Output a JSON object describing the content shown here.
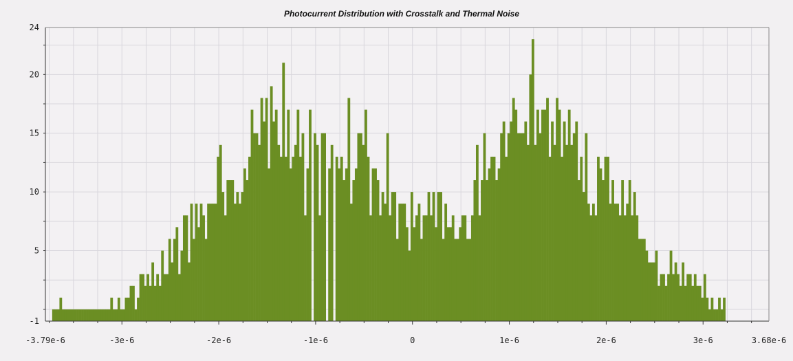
{
  "chart_data": {
    "type": "bar",
    "title": "Photocurrent Distribution with Crosstalk and Thermal Noise",
    "xlabel": "",
    "ylabel": "",
    "xlim": [
      -3.79e-06,
      3.68e-06
    ],
    "ylim": [
      -1,
      24
    ],
    "x_ticks": [
      -3.79e-06,
      -3e-06,
      -2e-06,
      -1e-06,
      0,
      1e-06,
      2e-06,
      3e-06,
      3.68e-06
    ],
    "x_tick_labels": [
      "-3.79e-6",
      "-3e-6",
      "-2e-6",
      "-1e-6",
      "0",
      "1e-6",
      "2e-6",
      "3e-6",
      "3.68e-6"
    ],
    "y_ticks": [
      -1,
      5,
      10,
      15,
      20,
      24
    ],
    "y_tick_labels": [
      "-1",
      "5",
      "10",
      "15",
      "20",
      "24"
    ],
    "grid": true,
    "legend": "none",
    "bar_color": "#6b8e23",
    "background_color": "#f2f0f2",
    "bin_start": -3.72e-06,
    "bin_width": 2.5e-08,
    "values": [
      0,
      0,
      0,
      1,
      0,
      0,
      0,
      0,
      0,
      0,
      0,
      0,
      0,
      0,
      0,
      0,
      0,
      0,
      0,
      0,
      0,
      0,
      0,
      0,
      1,
      0,
      0,
      1,
      0,
      0,
      1,
      1,
      2,
      2,
      0,
      1,
      3,
      3,
      2,
      3,
      2,
      4,
      2,
      3,
      2,
      5,
      3,
      3,
      6,
      4,
      6,
      7,
      3,
      5,
      8,
      8,
      4,
      9,
      6,
      9,
      7,
      9,
      8,
      6,
      9,
      9,
      9,
      9,
      13,
      14,
      10,
      8,
      11,
      11,
      11,
      9,
      10,
      9,
      10,
      12,
      11,
      13,
      17,
      15,
      15,
      14,
      18,
      16,
      18,
      12,
      19,
      16,
      17,
      14,
      13,
      21,
      13,
      17,
      12,
      13,
      14,
      17,
      13,
      15,
      8,
      12,
      17,
      -1,
      15,
      14,
      8,
      15,
      15,
      -1,
      12,
      14,
      -1,
      13,
      12,
      13,
      11,
      12,
      18,
      9,
      11,
      12,
      15,
      15,
      14,
      17,
      13,
      8,
      12,
      12,
      11,
      8,
      10,
      9,
      15,
      8,
      10,
      10,
      6,
      9,
      9,
      9,
      7,
      5,
      10,
      7,
      8,
      9,
      6,
      8,
      8,
      10,
      8,
      10,
      7,
      10,
      10,
      6,
      9,
      7,
      7,
      8,
      6,
      6,
      7,
      8,
      8,
      6,
      6,
      8,
      11,
      14,
      8,
      11,
      15,
      11,
      12,
      13,
      13,
      11,
      12,
      15,
      16,
      13,
      15,
      16,
      18,
      17,
      15,
      15,
      15,
      16,
      14,
      20,
      23,
      14,
      17,
      15,
      17,
      17,
      18,
      13,
      16,
      14,
      18,
      17,
      13,
      16,
      14,
      17,
      14,
      15,
      16,
      11,
      13,
      10,
      15,
      9,
      8,
      9,
      8,
      13,
      12,
      11,
      13,
      13,
      9,
      11,
      9,
      9,
      8,
      11,
      8,
      9,
      11,
      8,
      10,
      8,
      6,
      6,
      6,
      5,
      4,
      4,
      4,
      5,
      2,
      3,
      3,
      2,
      3,
      5,
      3,
      4,
      3,
      2,
      4,
      2,
      3,
      3,
      2,
      3,
      2,
      2,
      1,
      3,
      1,
      0,
      1,
      0,
      0,
      1,
      0,
      1
    ]
  }
}
